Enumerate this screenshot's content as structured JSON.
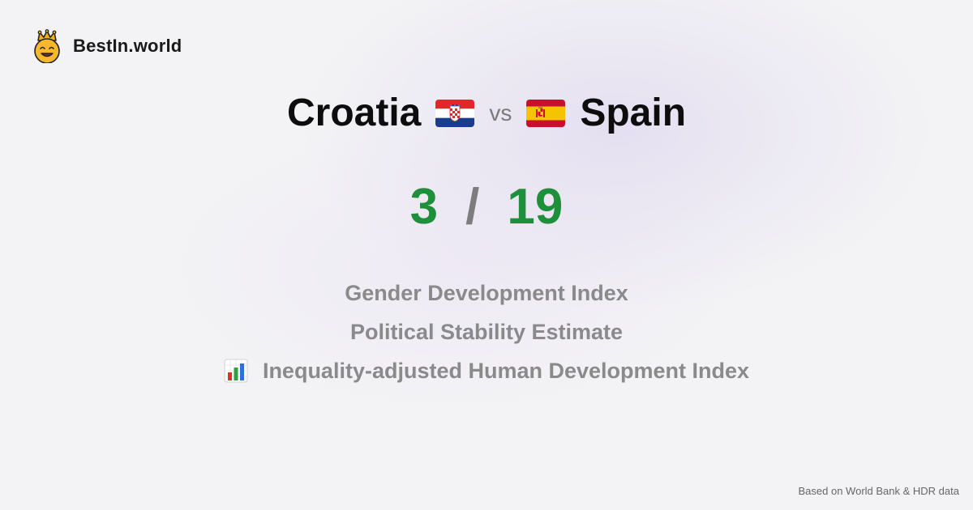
{
  "brand": {
    "name": "BestIn.world",
    "logo_icon": "crowned-smiley-icon"
  },
  "comparison": {
    "left_country": "Croatia",
    "left_flag_icon": "croatia-flag-icon",
    "vs_label": "vs",
    "right_country": "Spain",
    "right_flag_icon": "spain-flag-icon"
  },
  "score": {
    "left": "3",
    "separator": "/",
    "right": "19",
    "color": "#1e8f3a"
  },
  "metrics": [
    {
      "label": "Gender Development Index",
      "icon": ""
    },
    {
      "label": "Political Stability Estimate",
      "icon": ""
    },
    {
      "label": "Inequality-adjusted Human Development Index",
      "icon": "bar-chart-icon"
    }
  ],
  "footer": {
    "note": "Based on World Bank & HDR data"
  }
}
